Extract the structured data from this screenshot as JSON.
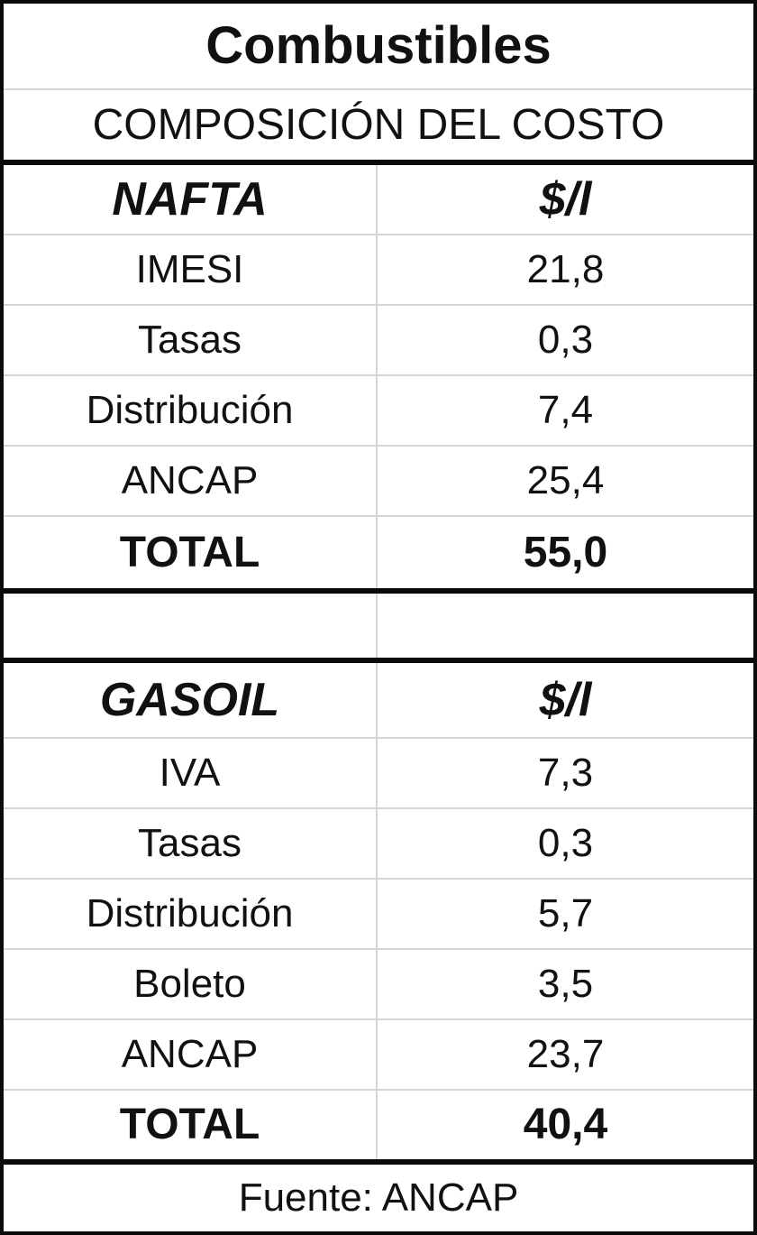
{
  "header": {
    "title": "Combustibles",
    "subtitle": "COMPOSICIÓN DEL COSTO"
  },
  "nafta": {
    "name": "NAFTA",
    "unit": "$/l",
    "rows": [
      {
        "label": "IMESI",
        "value": "21,8"
      },
      {
        "label": "Tasas",
        "value": "0,3"
      },
      {
        "label": "Distribución",
        "value": "7,4"
      },
      {
        "label": "ANCAP",
        "value": "25,4"
      }
    ],
    "total": {
      "label": "TOTAL",
      "value": "55,0"
    }
  },
  "gasoil": {
    "name": "GASOIL",
    "unit": "$/l",
    "rows": [
      {
        "label": "IVA",
        "value": "7,3"
      },
      {
        "label": "Tasas",
        "value": "0,3"
      },
      {
        "label": "Distribución",
        "value": "5,7"
      },
      {
        "label": "Boleto",
        "value": "3,5"
      },
      {
        "label": "ANCAP",
        "value": "23,7"
      }
    ],
    "total": {
      "label": "TOTAL",
      "value": "40,4"
    }
  },
  "footer": {
    "source": "Fuente: ANCAP"
  },
  "colors": {
    "border": "#000000",
    "gridline": "#d5d5d5",
    "text": "#111111",
    "background": "#ffffff"
  },
  "chart_data": {
    "type": "table",
    "title": "Combustibles",
    "subtitle": "COMPOSICIÓN DEL COSTO",
    "unit": "$/l",
    "sections": [
      {
        "name": "NAFTA",
        "categories": [
          "IMESI",
          "Tasas",
          "Distribución",
          "ANCAP"
        ],
        "values": [
          21.8,
          0.3,
          7.4,
          25.4
        ],
        "total_label": "TOTAL",
        "total": 55.0
      },
      {
        "name": "GASOIL",
        "categories": [
          "IVA",
          "Tasas",
          "Distribución",
          "Boleto",
          "ANCAP"
        ],
        "values": [
          7.3,
          0.3,
          5.7,
          3.5,
          23.7
        ],
        "total_label": "TOTAL",
        "total": 40.4
      }
    ],
    "source": "Fuente: ANCAP"
  }
}
